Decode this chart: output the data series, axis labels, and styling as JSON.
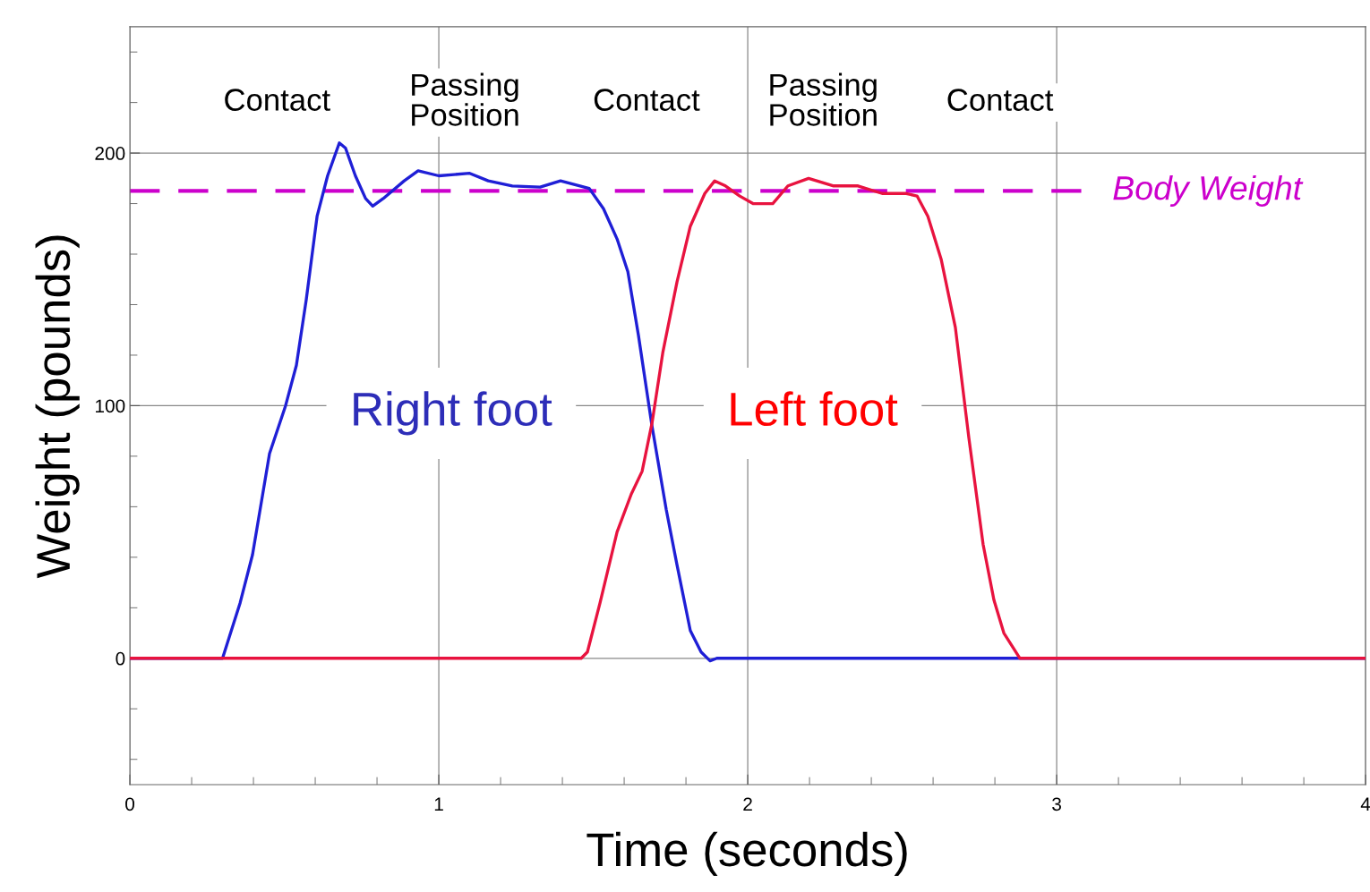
{
  "chart_data": {
    "type": "line",
    "xlabel": "Time (seconds)",
    "ylabel": "Weight (pounds)",
    "xlim": [
      0,
      4
    ],
    "ylim": [
      -50,
      250
    ],
    "xticks": [
      0,
      {
        "value": 0.2,
        "label": null
      },
      {
        "value": 0.4,
        "label": null
      },
      {
        "value": 0.6,
        "label": null
      },
      {
        "value": 0.8,
        "label": null
      },
      1,
      {
        "value": 1.2,
        "label": null
      },
      {
        "value": 1.4,
        "label": null
      },
      {
        "value": 1.6,
        "label": null
      },
      {
        "value": 1.8,
        "label": null
      },
      2,
      {
        "value": 2.2,
        "label": null
      },
      {
        "value": 2.4,
        "label": null
      },
      {
        "value": 2.6,
        "label": null
      },
      {
        "value": 2.8,
        "label": null
      },
      3,
      {
        "value": 3.2,
        "label": null
      },
      {
        "value": 3.4,
        "label": null
      },
      {
        "value": 3.6,
        "label": null
      },
      {
        "value": 3.8,
        "label": null
      },
      4
    ],
    "yticks": [
      {
        "value": -40,
        "label": null
      },
      {
        "value": -20,
        "label": null
      },
      0,
      {
        "value": 20,
        "label": null
      },
      {
        "value": 40,
        "label": null
      },
      {
        "value": 60,
        "label": null
      },
      {
        "value": 80,
        "label": null
      },
      100,
      {
        "value": 120,
        "label": null
      },
      {
        "value": 140,
        "label": null
      },
      {
        "value": 160,
        "label": null
      },
      {
        "value": 180,
        "label": null
      },
      200,
      {
        "value": 220,
        "label": null
      },
      {
        "value": 240,
        "label": null
      }
    ],
    "grid": true,
    "legend": false,
    "marker": "none",
    "line_style": "solid",
    "series": [
      {
        "name": "Right foot",
        "color": "#1f1fd6",
        "x": [
          0,
          0.3,
          0.357,
          0.397,
          0.452,
          0.504,
          0.539,
          0.571,
          0.606,
          0.64,
          0.678,
          0.698,
          0.73,
          0.763,
          0.786,
          0.82,
          0.888,
          0.933,
          1.0,
          1.1,
          1.16,
          1.238,
          1.328,
          1.394,
          1.487,
          1.533,
          1.577,
          1.612,
          1.646,
          1.69,
          1.736,
          1.771,
          1.814,
          1.849,
          1.878,
          1.9,
          4
        ],
        "values": [
          0,
          0,
          22,
          41,
          81,
          100,
          116,
          142,
          175,
          191,
          204,
          202,
          191,
          182,
          179,
          182,
          189,
          193,
          191,
          192,
          189,
          187,
          186.5,
          189,
          186,
          178,
          166,
          153,
          128,
          92,
          59,
          37,
          11,
          2.5,
          -1,
          0,
          0
        ]
      },
      {
        "name": "Left foot",
        "color": "#e8133f",
        "x": [
          0,
          1.461,
          1.481,
          1.522,
          1.577,
          1.623,
          1.658,
          1.69,
          1.725,
          1.771,
          1.814,
          1.861,
          1.893,
          1.928,
          1.974,
          2.017,
          2.081,
          2.13,
          2.197,
          2.278,
          2.357,
          2.435,
          2.513,
          2.548,
          2.583,
          2.626,
          2.672,
          2.716,
          2.762,
          2.797,
          2.829,
          2.881,
          4
        ],
        "values": [
          0,
          0,
          2.5,
          22,
          50,
          65,
          74,
          93,
          121,
          149,
          171,
          184,
          189,
          187,
          183,
          180,
          180,
          187,
          190,
          187,
          187,
          184,
          184,
          183,
          175,
          158,
          131,
          87,
          45,
          23,
          10,
          0,
          0
        ]
      }
    ],
    "ref_lines": [
      {
        "axis": "y",
        "value": 185,
        "label": "Body Weight",
        "color": "#cc00cc",
        "line_style": "dashed"
      }
    ],
    "annotations": [
      "Contact",
      "Passing\nPosition",
      "Contact",
      "Passing\nPosition",
      "Contact"
    ]
  }
}
